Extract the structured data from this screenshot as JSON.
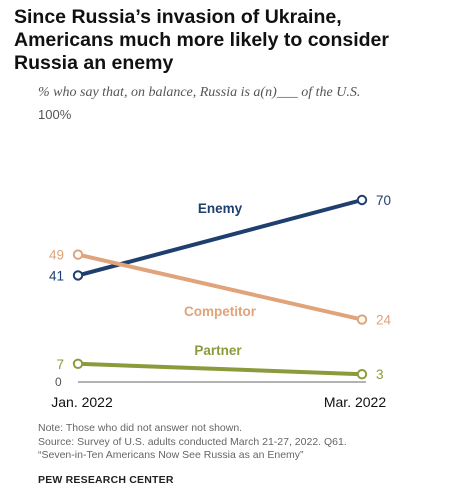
{
  "title_lines": [
    "Since Russia’s invasion of Ukraine,",
    "Americans much more likely to consider",
    "Russia an enemy"
  ],
  "subtitle": "% who say that, on balance, Russia is a(n)___ of the U.S.",
  "notes": [
    "Note: Those who did not answer not shown.",
    "Source: Survey of U.S. adults conducted March 21-27, 2022. Q61.",
    "“Seven-in-Ten Americans Now See Russia as an Enemy”"
  ],
  "source_org": "PEW RESEARCH CENTER",
  "chart_data": {
    "type": "line",
    "categories": [
      "Jan. 2022",
      "Mar. 2022"
    ],
    "y_axis_labels": [
      "100%",
      "0"
    ],
    "ylim": [
      0,
      100
    ],
    "grid": false,
    "series": [
      {
        "name": "Enemy",
        "values": [
          41,
          70
        ],
        "color": "#1f3f6e",
        "value_labels": [
          "41",
          "70"
        ]
      },
      {
        "name": "Competitor",
        "values": [
          49,
          24
        ],
        "color": "#e0a37a",
        "value_labels": [
          "49",
          "24"
        ]
      },
      {
        "name": "Partner",
        "values": [
          7,
          3
        ],
        "color": "#8c9a3b",
        "value_labels": [
          "7",
          "3"
        ]
      }
    ]
  }
}
